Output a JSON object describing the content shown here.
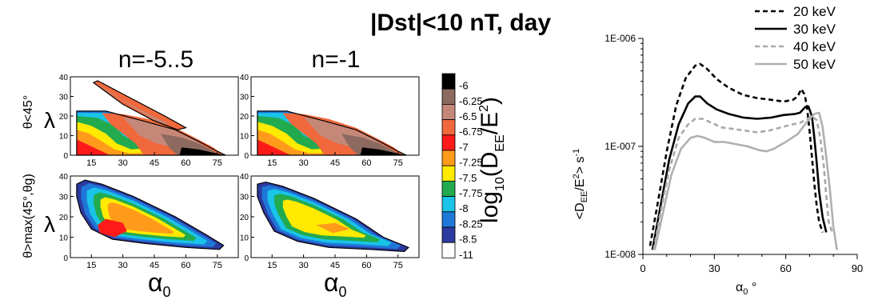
{
  "figure": {
    "title": "|Dst|<10 nT, day",
    "column_titles": [
      "n=-5..5",
      "n=-1"
    ],
    "row_labels": [
      "θ<45°",
      "θ>max(45°,θg)"
    ],
    "lambda_symbol": "λ",
    "alpha_symbol": "α",
    "alpha_sub": "0"
  },
  "colorbar": {
    "label": "log10(DEE/E²)",
    "ticks": [
      "-6",
      "-6.25",
      "-6.5",
      "-6.75",
      "-7",
      "-7.25",
      "-7.5",
      "-7.75",
      "-8",
      "-8.25",
      "-8.5",
      "-11"
    ],
    "colors": [
      "#000000",
      "#8c6a60",
      "#c58878",
      "#f0683c",
      "#ff1a1a",
      "#ff9a1a",
      "#ffea00",
      "#22aa4e",
      "#19c4e8",
      "#1f78d8",
      "#2c3aa0",
      "#ffffff"
    ]
  },
  "chart_data": [
    {
      "type": "heatmap",
      "title": "n=-5..5",
      "ylabel": "λ",
      "row": "θ<45°",
      "xlim": [
        5,
        85
      ],
      "ylim": [
        0,
        40
      ],
      "xticks": [
        15,
        30,
        45,
        60,
        75
      ],
      "yticks": [
        0,
        10,
        20,
        30,
        40
      ]
    },
    {
      "type": "heatmap",
      "title": "n=-1",
      "row": "θ<45°",
      "xlim": [
        5,
        85
      ],
      "ylim": [
        0,
        40
      ],
      "xticks": [
        15,
        30,
        45,
        60,
        75
      ],
      "yticks": [
        0,
        10,
        20,
        30,
        40
      ]
    },
    {
      "type": "heatmap",
      "ylabel": "λ",
      "xlabel": "α0",
      "row": "θ>max(45°,θg)",
      "xlim": [
        5,
        85
      ],
      "ylim": [
        0,
        40
      ],
      "xticks": [
        15,
        30,
        45,
        60,
        75
      ],
      "yticks": [
        0,
        10,
        20,
        30,
        40
      ]
    },
    {
      "type": "heatmap",
      "xlabel": "α0",
      "row": "θ>max(45°,θg)",
      "xlim": [
        5,
        85
      ],
      "ylim": [
        0,
        40
      ],
      "xticks": [
        15,
        30,
        45,
        60,
        75
      ],
      "yticks": [
        0,
        10,
        20,
        30,
        40
      ]
    },
    {
      "type": "line",
      "xlabel": "α0 °",
      "ylabel": "<DEE/E²> s-1",
      "xlim": [
        0,
        90
      ],
      "ylim": [
        1e-08,
        1e-06
      ],
      "yscale": "log",
      "xticks": [
        0,
        30,
        60,
        90
      ],
      "ytick_labels": [
        "1E-008",
        "1E-007",
        "1E-006"
      ],
      "legend": "top-right",
      "series": [
        {
          "name": "20 keV",
          "style": "dashed",
          "color": "#000000",
          "x": [
            3,
            6,
            10,
            14,
            18,
            22,
            24,
            27,
            31,
            36,
            42,
            48,
            54,
            59,
            63,
            65,
            66.5,
            68,
            69,
            70,
            71,
            72,
            73,
            74,
            75.5
          ],
          "y": [
            1.2e-08,
            2.8e-08,
            9e-08,
            2.4e-07,
            4.3e-07,
            5.6e-07,
            5.8e-07,
            5.2e-07,
            4.2e-07,
            3.5e-07,
            3e-07,
            2.8e-07,
            2.7e-07,
            2.6e-07,
            2.7e-07,
            2.9e-07,
            3.4e-07,
            3e-07,
            2.2e-07,
            1.4e-07,
            8e-08,
            4.5e-08,
            2.8e-08,
            2e-08,
            1.6e-08
          ]
        },
        {
          "name": "30 keV",
          "style": "solid",
          "color": "#000000",
          "x": [
            4,
            7,
            11,
            15,
            19,
            22,
            24,
            27,
            31,
            36,
            42,
            48,
            54,
            59,
            64,
            66,
            68,
            69.5,
            71,
            72,
            73,
            74,
            75.5,
            77
          ],
          "y": [
            1.1e-08,
            2.5e-08,
            7.5e-08,
            1.6e-07,
            2.5e-07,
            2.9e-07,
            2.9e-07,
            2.5e-07,
            2.2e-07,
            2e-07,
            1.85e-07,
            1.8e-07,
            1.85e-07,
            1.95e-07,
            2e-07,
            2.05e-07,
            2.3e-07,
            2.35e-07,
            1.9e-07,
            1.2e-07,
            7e-08,
            3.8e-08,
            2.2e-08,
            1.6e-08
          ]
        },
        {
          "name": "40 keV",
          "style": "dashed",
          "color": "#a8a8a8",
          "x": [
            4.5,
            7,
            11,
            15,
            19,
            22,
            25,
            29,
            33,
            38,
            43,
            48,
            53,
            58,
            63,
            66,
            69,
            71,
            73,
            74.5,
            76,
            77,
            78,
            79.5
          ],
          "y": [
            1.1e-08,
            2.2e-08,
            6e-08,
            1.2e-07,
            1.6e-07,
            1.8e-07,
            1.8e-07,
            1.65e-07,
            1.5e-07,
            1.45e-07,
            1.4e-07,
            1.35e-07,
            1.4e-07,
            1.5e-07,
            1.6e-07,
            1.65e-07,
            1.8e-07,
            1.9e-07,
            1.75e-07,
            1.2e-07,
            6.5e-08,
            3.5e-08,
            2e-08,
            1.6e-08
          ]
        },
        {
          "name": "50 keV",
          "style": "solid",
          "color": "#b0b0b0",
          "x": [
            5,
            8,
            12,
            16,
            20,
            23,
            26,
            30,
            34,
            39,
            44,
            49,
            52,
            55,
            60,
            65,
            69,
            72,
            74,
            75.5,
            77,
            78.5,
            80,
            81.5
          ],
          "y": [
            1.1e-08,
            2.2e-08,
            5.5e-08,
            9.5e-08,
            1.2e-07,
            1.25e-07,
            1.2e-07,
            1.1e-07,
            1.1e-07,
            1.05e-07,
            1e-07,
            9.2e-08,
            9e-08,
            9.5e-08,
            1.1e-07,
            1.3e-07,
            1.7e-07,
            2e-07,
            2.05e-07,
            1.5e-07,
            8e-08,
            4e-08,
            1.8e-08,
            1.1e-08
          ]
        }
      ]
    }
  ]
}
